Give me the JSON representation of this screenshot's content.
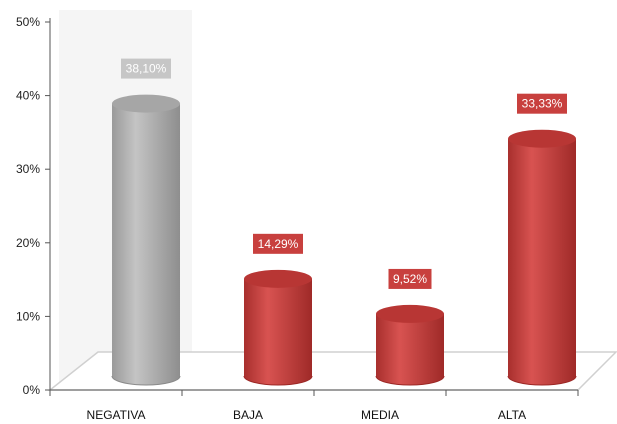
{
  "chart_data": {
    "type": "bar",
    "style": "3d-cylinder",
    "categories": [
      "NEGATIVA",
      "BAJA",
      "MEDIA",
      "ALTA"
    ],
    "values": [
      38.1,
      14.29,
      9.52,
      33.33
    ],
    "data_labels": [
      "38,10%",
      "14,29%",
      "9,52%",
      "33,33%"
    ],
    "colors": [
      "#b3b3b3",
      "#c8403e",
      "#c8403e",
      "#c8403e"
    ],
    "highlight_category": "NEGATIVA",
    "y_ticks": [
      "0%",
      "10%",
      "20%",
      "30%",
      "40%",
      "50%"
    ],
    "ylim": [
      0,
      50
    ],
    "grid": false,
    "legend": "none",
    "title": "",
    "xlabel": "",
    "ylabel": ""
  }
}
